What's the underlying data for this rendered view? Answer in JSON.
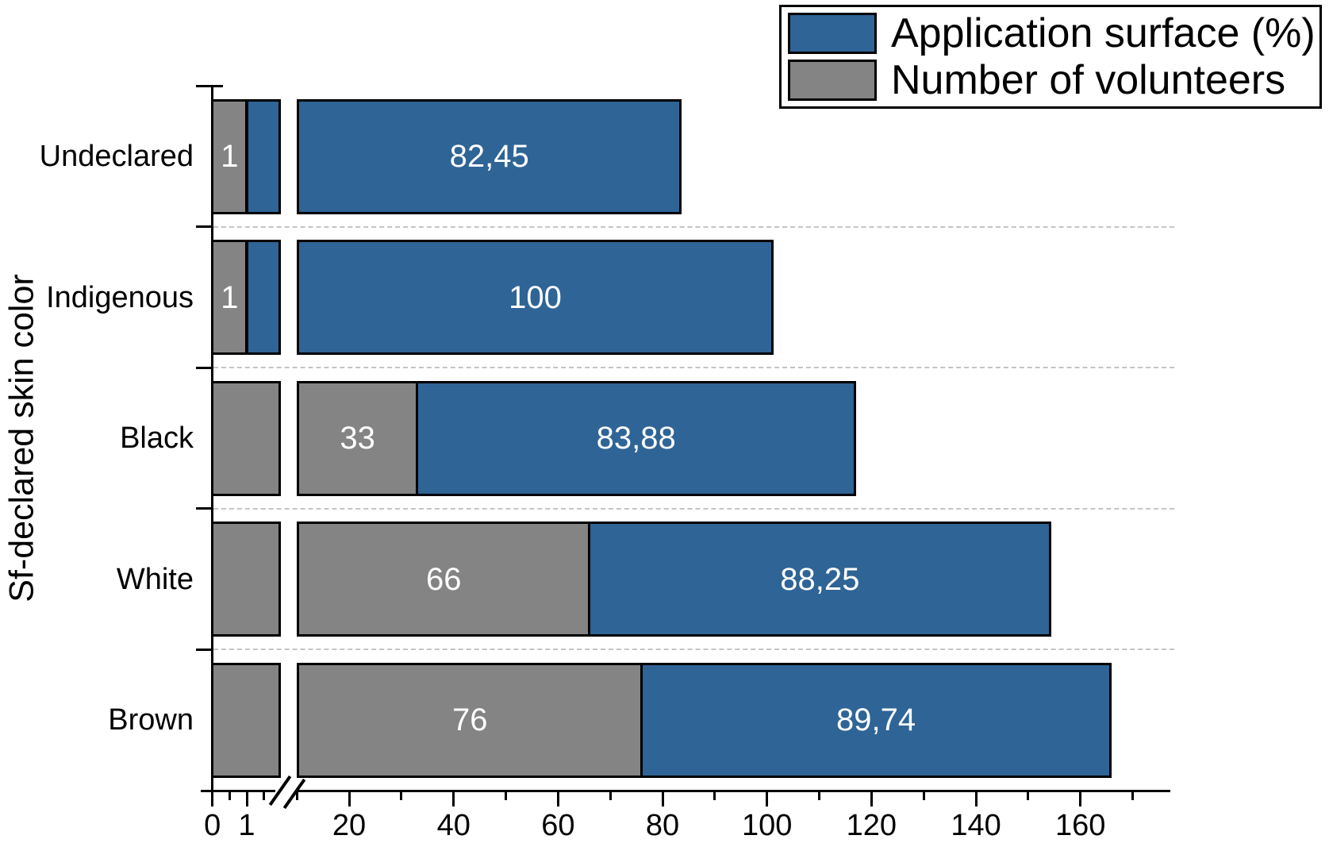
{
  "chart_data": {
    "type": "bar",
    "orientation": "horizontal",
    "stacked": true,
    "title": "",
    "xlabel": "",
    "ylabel": "Sf-declared skin color",
    "categories": [
      "Undeclared",
      "Indigenous",
      "Black",
      "White",
      "Brown"
    ],
    "series": [
      {
        "name": "Number of volunteers",
        "color": "#848484",
        "values": [
          1,
          1,
          33,
          66,
          76
        ],
        "display_labels": [
          "1",
          "1",
          "33",
          "66",
          "76"
        ],
        "label_color": "#ffffff"
      },
      {
        "name": "Application surface (%)",
        "color": "#2F6496",
        "values": [
          82.45,
          100,
          83.88,
          88.25,
          89.74
        ],
        "display_labels": [
          "82,45",
          "100",
          "83,88",
          "88,25",
          "89,74"
        ],
        "label_color": "#ffffff"
      }
    ],
    "x_axis": {
      "break": {
        "symbol": "//",
        "between_values": [
          2,
          10
        ]
      },
      "major_ticks": [
        0,
        1,
        20,
        40,
        60,
        80,
        100,
        120,
        140,
        160
      ],
      "major_tick_labels": [
        "0",
        "1",
        "20",
        "40",
        "60",
        "80",
        "100",
        "120",
        "140",
        "160"
      ],
      "minor_ticks": [
        0.5,
        1.5,
        10,
        30,
        50,
        70,
        90,
        110,
        130,
        150,
        170
      ],
      "range_right_end": 177
    },
    "grid": {
      "row_separators": "dashed",
      "separator_color": "#c4c4c4"
    },
    "legend": {
      "position": "top-right",
      "border_color": "#000000",
      "entries": [
        {
          "label": "Application surface (%)",
          "color": "#2F6496"
        },
        {
          "label": "Number of volunteers",
          "color": "#848484"
        }
      ]
    }
  }
}
